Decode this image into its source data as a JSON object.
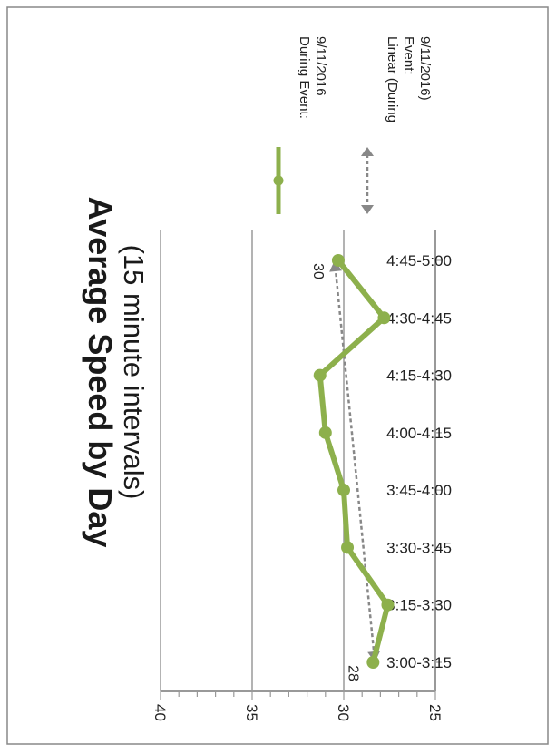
{
  "chart_data": {
    "type": "line",
    "title": "Average Speed by Day",
    "subtitle": "(15 minute intervals)",
    "categories": [
      "3:00-3:15",
      "3:15-3:30",
      "3:30-3:45",
      "3:45-4:00",
      "4:00-4:15",
      "4:15-4:30",
      "4:30-4:45",
      "4:45-5:00"
    ],
    "series": [
      {
        "name": "During Event: 9/11/2016",
        "values": [
          28.4,
          27.6,
          29.8,
          30.0,
          31.0,
          31.3,
          27.8,
          30.3
        ],
        "color": "#8db04c"
      }
    ],
    "trendline": {
      "name": "Linear (During Event: 9/11/2016)",
      "start": 28.3,
      "end": 30.5,
      "color": "#888888"
    },
    "data_labels": [
      {
        "category_index": 0,
        "text": "28"
      },
      {
        "category_index": 7,
        "text": "30"
      }
    ],
    "ylim": [
      25,
      40
    ],
    "y_ticks": [
      "25",
      "30",
      "35",
      "40"
    ],
    "grid": true,
    "legend_position": "right",
    "orientation": "rotated 90 degrees clockwise"
  }
}
